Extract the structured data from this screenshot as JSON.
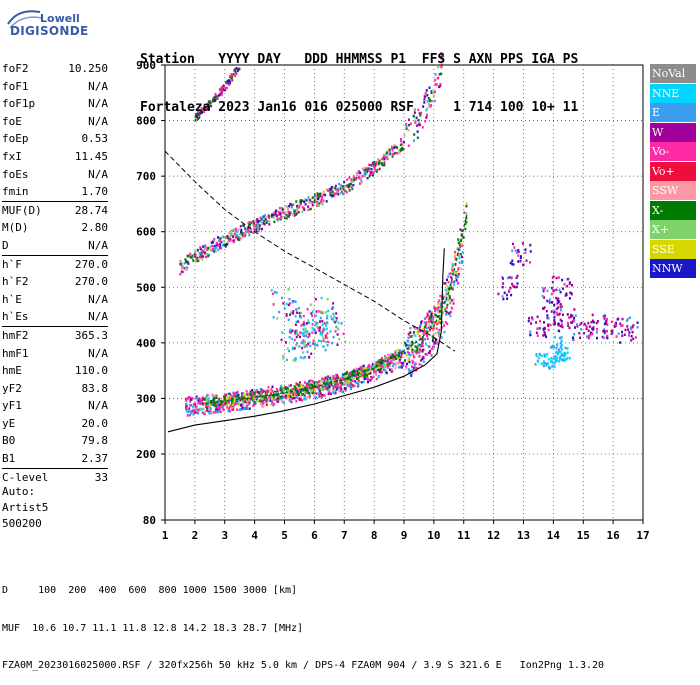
{
  "logo": {
    "line1": "Lowell",
    "line2": "DIGISONDE"
  },
  "header": {
    "labels": "Station   YYYY DAY   DDD HHMMSS P1  FFS S AXN PPS IGA PS",
    "values": "Fortaleza 2023 Jan16 016 025000 RSF     1 714 100 10+ 11"
  },
  "params_group1": [
    {
      "name": "foF2",
      "value": "10.250"
    },
    {
      "name": "foF1",
      "value": "N/A"
    },
    {
      "name": "foF1p",
      "value": "N/A"
    },
    {
      "name": "foE",
      "value": "N/A"
    },
    {
      "name": "foEp",
      "value": "0.53"
    },
    {
      "name": "fxI",
      "value": "11.45"
    },
    {
      "name": "foEs",
      "value": "N/A"
    },
    {
      "name": "fmin",
      "value": "1.70"
    }
  ],
  "params_group2": [
    {
      "name": "MUF(D)",
      "value": "28.74"
    },
    {
      "name": "M(D)",
      "value": "2.80"
    },
    {
      "name": "D",
      "value": "N/A"
    }
  ],
  "params_group3": [
    {
      "name": "h`F",
      "value": "270.0"
    },
    {
      "name": "h`F2",
      "value": "270.0"
    },
    {
      "name": "h`E",
      "value": "N/A"
    },
    {
      "name": "h`Es",
      "value": "N/A"
    }
  ],
  "params_group4": [
    {
      "name": "hmF2",
      "value": "365.3"
    },
    {
      "name": "hmF1",
      "value": "N/A"
    },
    {
      "name": "hmE",
      "value": "110.0"
    },
    {
      "name": "yF2",
      "value": "83.8"
    },
    {
      "name": "yF1",
      "value": "N/A"
    },
    {
      "name": "yE",
      "value": "20.0"
    },
    {
      "name": "B0",
      "value": "79.8"
    },
    {
      "name": "B1",
      "value": "2.37"
    }
  ],
  "params_group5": [
    {
      "name": "C-level",
      "value": "33"
    }
  ],
  "auto": {
    "line1": "Auto:",
    "line2": "Artist5",
    "line3": "500200"
  },
  "legend": [
    {
      "label": "NoVal",
      "color": "#8c8c8c"
    },
    {
      "label": "NNE",
      "color": "#00d4ff"
    },
    {
      "label": "E",
      "color": "#3b9df0"
    },
    {
      "label": "W",
      "color": "#a0009c"
    },
    {
      "label": "Vo-",
      "color": "#ff2aa5"
    },
    {
      "label": "Vo+",
      "color": "#ee0e3c"
    },
    {
      "label": "SSW",
      "color": "#fb9aa6"
    },
    {
      "label": "X-",
      "color": "#007a00"
    },
    {
      "label": "X+",
      "color": "#7fd36a"
    },
    {
      "label": "SSE",
      "color": "#d6d600"
    },
    {
      "label": "NNW",
      "color": "#1a17c8"
    }
  ],
  "footer": {
    "line1": "D     100  200  400  600  800 1000 1500 3000 [km]",
    "line2": "MUF  10.6 10.7 11.1 11.8 12.8 14.2 18.3 28.7 [MHz]",
    "line3": "FZA0M_2023016025000.RSF / 320fx256h 50 kHz 5.0 km / DPS-4 FZA0M 904 / 3.9 S 321.6 E   Ion2Png 1.3.20"
  },
  "chart_data": {
    "type": "scatter",
    "xlim": [
      1,
      17
    ],
    "ylim": [
      80,
      900
    ],
    "x_ticks": [
      1,
      2,
      3,
      4,
      5,
      6,
      7,
      8,
      9,
      10,
      11,
      12,
      13,
      14,
      15,
      16,
      17
    ],
    "y_ticks": [
      80,
      200,
      300,
      400,
      500,
      600,
      700,
      800,
      900
    ],
    "grid": true,
    "legend_position": "right",
    "trace_ordinary": [
      [
        1.7,
        285
      ],
      [
        2,
        287
      ],
      [
        3,
        293
      ],
      [
        4,
        300
      ],
      [
        5,
        308
      ],
      [
        6,
        317
      ],
      [
        7,
        330
      ],
      [
        8,
        350
      ],
      [
        9,
        375
      ],
      [
        9.5,
        395
      ],
      [
        10,
        425
      ],
      [
        10.5,
        480
      ],
      [
        10.8,
        540
      ],
      [
        11,
        600
      ]
    ],
    "trace_extraordinary": [
      [
        2.2,
        290
      ],
      [
        3,
        295
      ],
      [
        4,
        302
      ],
      [
        5,
        310
      ],
      [
        6,
        320
      ],
      [
        7,
        335
      ],
      [
        8,
        355
      ],
      [
        9,
        385
      ],
      [
        9.5,
        405
      ],
      [
        10,
        430
      ],
      [
        10.5,
        490
      ],
      [
        10.8,
        560
      ],
      [
        11.1,
        630
      ]
    ],
    "trace_second_hop": [
      [
        1.5,
        535
      ],
      [
        2,
        555
      ],
      [
        3,
        585
      ],
      [
        4,
        610
      ],
      [
        5,
        635
      ],
      [
        6,
        655
      ],
      [
        7,
        680
      ],
      [
        8,
        715
      ],
      [
        9,
        760
      ],
      [
        9.5,
        800
      ],
      [
        10,
        860
      ],
      [
        10.3,
        900
      ]
    ],
    "trace_third_hop": [
      [
        2,
        805
      ],
      [
        2.5,
        830
      ],
      [
        3,
        860
      ],
      [
        3.5,
        900
      ]
    ],
    "profile_true_height": [
      [
        1.1,
        240
      ],
      [
        2,
        252
      ],
      [
        3,
        260
      ],
      [
        4,
        268
      ],
      [
        5,
        278
      ],
      [
        6,
        290
      ],
      [
        7,
        305
      ],
      [
        8,
        320
      ],
      [
        9,
        340
      ],
      [
        9.7,
        360
      ],
      [
        10.1,
        380
      ],
      [
        10.25,
        420
      ],
      [
        10.3,
        520
      ],
      [
        10.35,
        570
      ]
    ],
    "muf_curve": [
      [
        1,
        745
      ],
      [
        2,
        690
      ],
      [
        3,
        640
      ],
      [
        4,
        600
      ],
      [
        5,
        565
      ],
      [
        6,
        535
      ],
      [
        7,
        505
      ],
      [
        8,
        475
      ],
      [
        9,
        440
      ],
      [
        10,
        410
      ],
      [
        10.7,
        385
      ]
    ],
    "scatter_E_region": [
      [
        5,
        470
      ],
      [
        5.5,
        440
      ],
      [
        6,
        430
      ],
      [
        6.3,
        455
      ],
      [
        5.7,
        410
      ],
      [
        6.6,
        420
      ],
      [
        5.3,
        395
      ],
      [
        6,
        395
      ]
    ],
    "scatter_W_region": [
      [
        13.5,
        430
      ],
      [
        14,
        450
      ],
      [
        14.5,
        440
      ],
      [
        15,
        420
      ],
      [
        15.5,
        430
      ],
      [
        16,
        420
      ],
      [
        16.5,
        425
      ],
      [
        13.9,
        480
      ],
      [
        14.3,
        500
      ],
      [
        12.5,
        500
      ],
      [
        12.9,
        560
      ]
    ],
    "scatter_NNE_region": [
      [
        13.6,
        370
      ],
      [
        13.9,
        365
      ],
      [
        14.2,
        375
      ],
      [
        14.4,
        380
      ],
      [
        14.1,
        400
      ]
    ]
  }
}
